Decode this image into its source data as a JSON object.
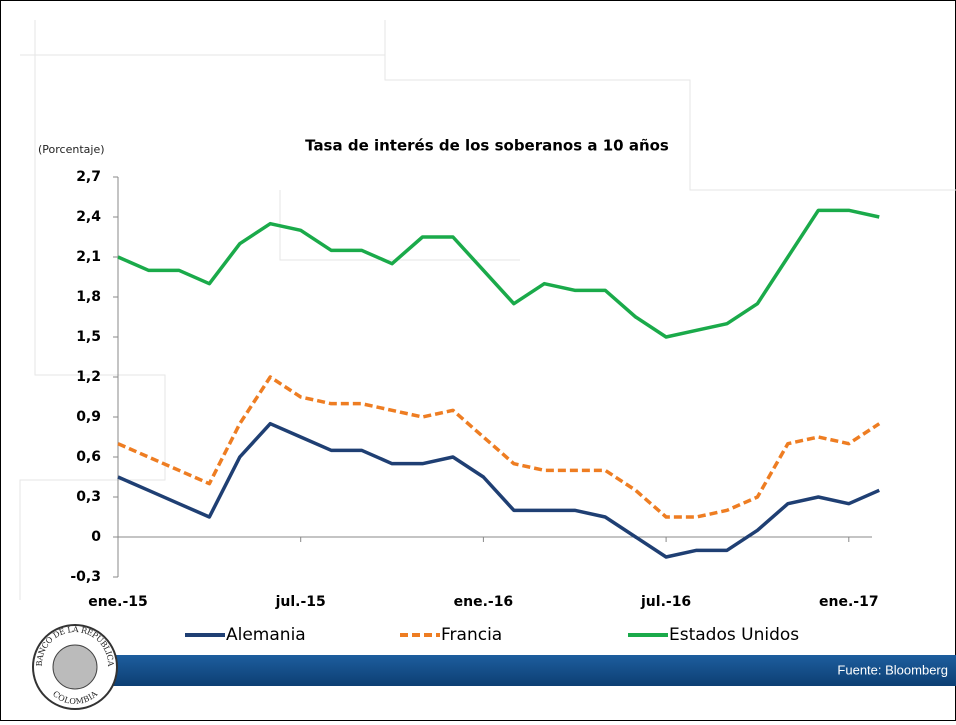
{
  "chart_data": {
    "type": "line",
    "title": "Tasa de interés de los soberanos a 10 años",
    "y_label": "(Porcentaje)",
    "source": "Fuente: Bloomberg",
    "logo": {
      "top": "BANCO DE LA REPUBLICA",
      "bottom": "COLOMBIA"
    },
    "categories": [
      "ene.-15",
      null,
      null,
      null,
      null,
      null,
      "jul.-15",
      null,
      null,
      null,
      null,
      null,
      "ene.-16",
      null,
      null,
      null,
      null,
      null,
      "jul.-16",
      null,
      null,
      null,
      null,
      null,
      "ene.-17",
      null
    ],
    "series": [
      {
        "name": "Alemania",
        "color": "#1f3f73",
        "dashed": false,
        "values": [
          0.45,
          0.35,
          0.25,
          0.15,
          0.6,
          0.85,
          0.75,
          0.65,
          0.65,
          0.55,
          0.55,
          0.6,
          0.45,
          0.2,
          0.2,
          0.2,
          0.15,
          0.0,
          -0.15,
          -0.1,
          -0.1,
          0.05,
          0.25,
          0.3,
          0.25,
          0.35
        ]
      },
      {
        "name": "Francia",
        "color": "#ee7d22",
        "dashed": true,
        "values": [
          0.7,
          0.6,
          0.5,
          0.4,
          0.85,
          1.2,
          1.05,
          1.0,
          1.0,
          0.95,
          0.9,
          0.95,
          0.75,
          0.55,
          0.5,
          0.5,
          0.5,
          0.35,
          0.15,
          0.15,
          0.2,
          0.3,
          0.7,
          0.75,
          0.7,
          0.85
        ]
      },
      {
        "name": "Estados Unidos",
        "color": "#1aaa4a",
        "dashed": false,
        "values": [
          2.1,
          2.0,
          2.0,
          1.9,
          2.2,
          2.35,
          2.3,
          2.15,
          2.15,
          2.05,
          2.25,
          2.25,
          2.0,
          1.75,
          1.9,
          1.85,
          1.85,
          1.65,
          1.5,
          1.55,
          1.6,
          1.75,
          2.1,
          2.45,
          2.45,
          2.4
        ]
      }
    ],
    "ylim": [
      -0.3,
      2.7
    ],
    "yticks": [
      {
        "value": -0.3,
        "label": "-0,3"
      },
      0,
      {
        "value": 0.3,
        "label": "0,3"
      },
      {
        "value": 0.6,
        "label": "0,6"
      },
      {
        "value": 0.9,
        "label": "0,9"
      },
      {
        "value": 1.2,
        "label": "1,2"
      },
      {
        "value": 1.5,
        "label": "1,5"
      },
      {
        "value": 1.8,
        "label": "1,8"
      },
      {
        "value": 2.1,
        "label": "2,1"
      },
      {
        "value": 2.4,
        "label": "2,4"
      },
      {
        "value": 2.7,
        "label": "2,7"
      }
    ],
    "legend": "bottom"
  }
}
